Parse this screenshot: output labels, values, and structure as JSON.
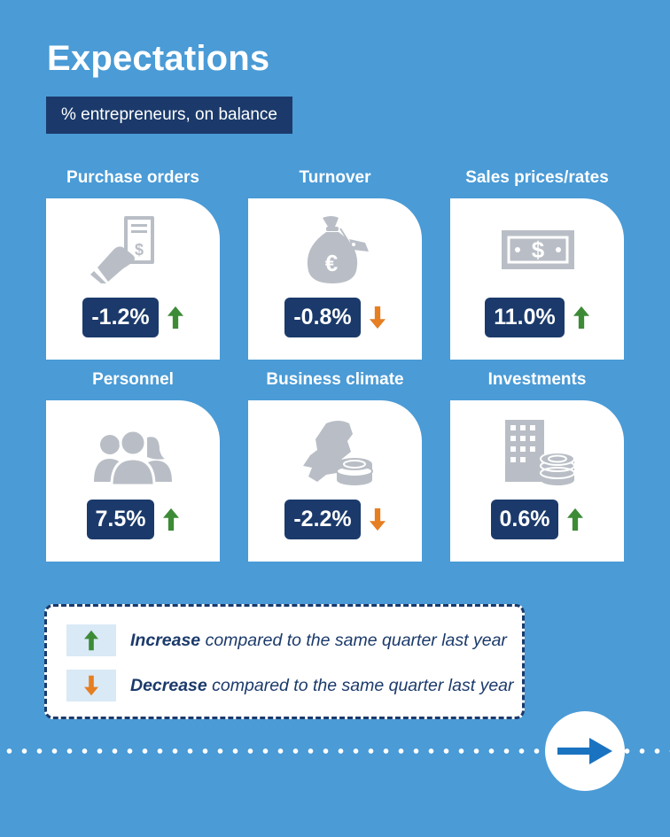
{
  "title": "Expectations",
  "subtitle": "% entrepreneurs, on balance",
  "cards": [
    {
      "title": "Purchase orders",
      "value": "-1.2%",
      "trend": "up",
      "icon": "document-hand-icon"
    },
    {
      "title": "Turnover",
      "value": "-0.8%",
      "trend": "down",
      "icon": "money-bag-icon"
    },
    {
      "title": "Sales prices/rates",
      "value": "11.0%",
      "trend": "up",
      "icon": "banknote-icon"
    },
    {
      "title": "Personnel",
      "value": "7.5%",
      "trend": "up",
      "icon": "people-icon"
    },
    {
      "title": "Business climate",
      "value": "-2.2%",
      "trend": "down",
      "icon": "map-coins-icon"
    },
    {
      "title": "Investments",
      "value": "0.6%",
      "trend": "up",
      "icon": "building-coins-icon"
    }
  ],
  "legend": {
    "increase": {
      "bold": "Increase",
      "rest": " compared to the same quarter last year"
    },
    "decrease": {
      "bold": "Decrease",
      "rest": " compared to the same quarter last year"
    }
  },
  "colors": {
    "background": "#4a9bd6",
    "navy": "#1b3a6b",
    "up_arrow": "#3d8b37",
    "down_arrow": "#e67e22",
    "icon_gray": "#b9bec6",
    "arrow_blue": "#1a73c0"
  }
}
